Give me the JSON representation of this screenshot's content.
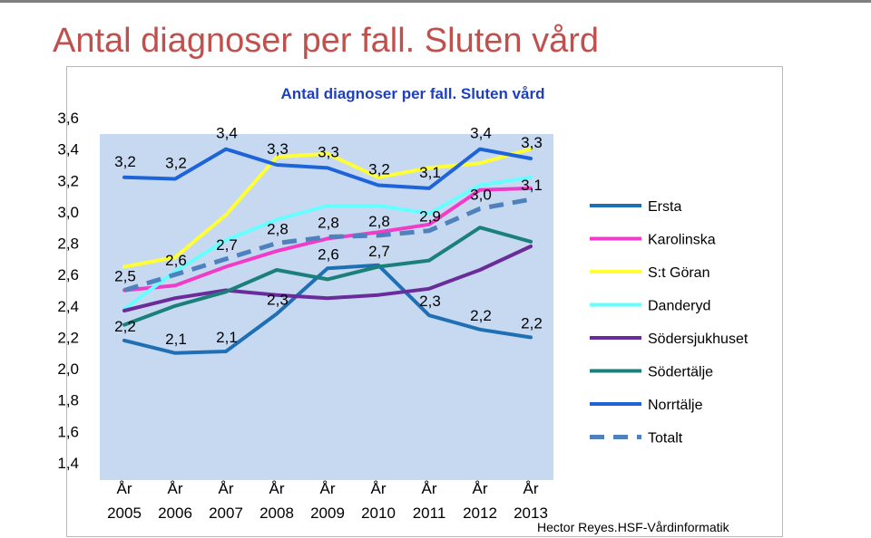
{
  "slide": {
    "title": "Antal diagnoser per fall. Sluten vård",
    "credit": "Hector  Reyes.HSF-Vårdinformatik"
  },
  "chart_data": {
    "type": "line",
    "title": "Antal diagnoser per fall. Sluten vård",
    "xlabel": "",
    "ylabel": "",
    "categories": [
      "År 2005",
      "År 2006",
      "År 2007",
      "År 2008",
      "År 2009",
      "År 2010",
      "År 2011",
      "År 2012",
      "År 2013"
    ],
    "y_ticks": [
      "1,4",
      "1,6",
      "1,8",
      "2,0",
      "2,2",
      "2,4",
      "2,6",
      "2,8",
      "3,0",
      "3,2",
      "3,4",
      "3,6"
    ],
    "ylim": [
      1.4,
      3.6
    ],
    "grid": false,
    "legend_position": "right",
    "plot_background": "#c6d9f1",
    "series": [
      {
        "name": "Ersta",
        "color": "#1f6fb5",
        "dashed": false,
        "values": [
          2.18,
          2.1,
          2.11,
          2.35,
          2.64,
          2.66,
          2.34,
          2.25,
          2.2
        ]
      },
      {
        "name": "Karolinska",
        "color": "#f03cc8",
        "dashed": false,
        "values": [
          2.5,
          2.53,
          2.65,
          2.75,
          2.83,
          2.87,
          2.92,
          3.14,
          3.15
        ]
      },
      {
        "name": "S:t Göran",
        "color": "#ffff33",
        "dashed": false,
        "values": [
          2.65,
          2.71,
          2.98,
          3.35,
          3.37,
          3.22,
          3.28,
          3.31,
          3.4
        ]
      },
      {
        "name": "Danderyd",
        "color": "#66ffff",
        "dashed": false,
        "values": [
          2.38,
          2.62,
          2.82,
          2.95,
          3.04,
          3.04,
          2.99,
          3.17,
          3.22
        ]
      },
      {
        "name": "Södersjukhuset",
        "color": "#6a2c9b",
        "dashed": false,
        "values": [
          2.37,
          2.45,
          2.5,
          2.47,
          2.45,
          2.47,
          2.51,
          2.63,
          2.78
        ]
      },
      {
        "name": "Södertälje",
        "color": "#1b7f7a",
        "dashed": false,
        "values": [
          2.28,
          2.4,
          2.49,
          2.63,
          2.57,
          2.65,
          2.69,
          2.9,
          2.81
        ]
      },
      {
        "name": "Norrtälje",
        "color": "#1e64d8",
        "dashed": false,
        "values": [
          3.22,
          3.21,
          3.4,
          3.3,
          3.28,
          3.17,
          3.15,
          3.4,
          3.34
        ]
      },
      {
        "name": "Totalt",
        "color": "#4f81bd",
        "dashed": true,
        "values": [
          2.5,
          2.6,
          2.7,
          2.8,
          2.84,
          2.85,
          2.88,
          3.02,
          3.08
        ]
      }
    ],
    "data_labels": [
      {
        "text": "3,2",
        "series": "Norrtälje",
        "index": 0
      },
      {
        "text": "3,2",
        "series": "Norrtälje",
        "index": 1
      },
      {
        "text": "3,4",
        "series": "Norrtälje",
        "index": 2
      },
      {
        "text": "3,3",
        "series": "Norrtälje",
        "index": 3
      },
      {
        "text": "3,3",
        "series": "Norrtälje",
        "index": 4
      },
      {
        "text": "3,2",
        "series": "Norrtälje",
        "index": 5
      },
      {
        "text": "3,1",
        "series": "Norrtälje",
        "index": 6
      },
      {
        "text": "3,4",
        "series": "Norrtälje",
        "index": 7
      },
      {
        "text": "3,3",
        "series": "Norrtälje",
        "index": 8
      },
      {
        "text": "2,5",
        "series": "Totalt",
        "index": 0
      },
      {
        "text": "2,6",
        "series": "Totalt",
        "index": 1
      },
      {
        "text": "2,7",
        "series": "Totalt",
        "index": 2
      },
      {
        "text": "2,8",
        "series": "Totalt",
        "index": 3
      },
      {
        "text": "2,8",
        "series": "Totalt",
        "index": 4
      },
      {
        "text": "2,8",
        "series": "Totalt",
        "index": 5
      },
      {
        "text": "2,9",
        "series": "Totalt",
        "index": 6
      },
      {
        "text": "3,0",
        "series": "Totalt",
        "index": 7
      },
      {
        "text": "3,1",
        "series": "Totalt",
        "index": 8
      },
      {
        "text": "2,2",
        "series": "Ersta",
        "index": 0
      },
      {
        "text": "2,1",
        "series": "Ersta",
        "index": 1
      },
      {
        "text": "2,1",
        "series": "Ersta",
        "index": 2
      },
      {
        "text": "2,3",
        "series": "Ersta",
        "index": 3
      },
      {
        "text": "2,6",
        "series": "Ersta",
        "index": 4
      },
      {
        "text": "2,7",
        "series": "Ersta",
        "index": 5
      },
      {
        "text": "2,3",
        "series": "Ersta",
        "index": 6
      },
      {
        "text": "2,2",
        "series": "Ersta",
        "index": 7
      },
      {
        "text": "2,2",
        "series": "Ersta",
        "index": 8
      }
    ]
  }
}
